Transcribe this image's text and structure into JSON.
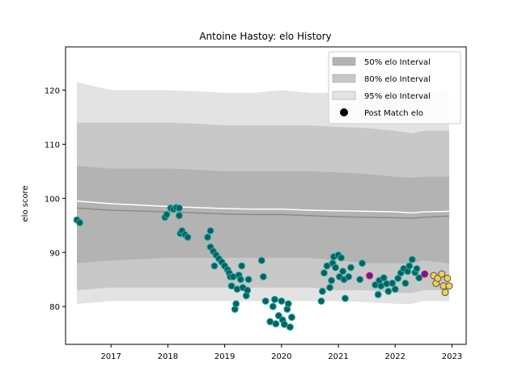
{
  "chart_data": {
    "type": "scatter",
    "title": "Antoine Hastoy: elo History",
    "xlabel": "",
    "ylabel": "elo score",
    "xlim": [
      2016.2,
      2023.25
    ],
    "ylim": [
      73,
      128
    ],
    "x_ticks": [
      2017,
      2018,
      2019,
      2020,
      2021,
      2022,
      2023
    ],
    "y_ticks": [
      80,
      90,
      100,
      110,
      120
    ],
    "grid": false,
    "legend": {
      "placement": "top-right",
      "entries": [
        "50% elo Interval",
        "80% elo Interval",
        "95% elo Interval",
        "Post Match elo"
      ]
    },
    "colors": {
      "band50": "#b3b3b3",
      "band80": "#c8c8c8",
      "band95": "#e3e3e3",
      "median_line": "#8c8c8c",
      "mean_line": "#ffffff",
      "point_fill": "#0f5f5f",
      "point_edge": "#20b2aa",
      "highlight_fill": "#6a1b9a",
      "highlight_edge": "#d81b60",
      "recent_fill": "#f0d050",
      "recent_edge": "#555555"
    },
    "intervals": {
      "x": [
        2016.4,
        2017.0,
        2018.0,
        2018.5,
        2019.0,
        2019.5,
        2020.0,
        2020.5,
        2021.0,
        2021.5,
        2022.0,
        2022.3,
        2022.5,
        2022.95
      ],
      "band95_upper": [
        121.5,
        120.0,
        120.0,
        119.8,
        119.5,
        119.5,
        120.0,
        119.5,
        119.5,
        119.3,
        119.0,
        118.8,
        119.0,
        120.0
      ],
      "band80_upper": [
        114.0,
        114.0,
        114.0,
        113.8,
        113.5,
        113.5,
        113.5,
        113.5,
        113.2,
        113.0,
        112.5,
        112.0,
        112.5,
        112.5
      ],
      "band50_upper": [
        106.0,
        105.5,
        105.5,
        105.3,
        105.0,
        105.0,
        105.0,
        105.0,
        104.8,
        104.5,
        104.0,
        103.8,
        104.0,
        104.0
      ],
      "band50_lower": [
        88.0,
        88.5,
        89.0,
        89.0,
        89.0,
        89.0,
        89.0,
        89.0,
        88.5,
        88.0,
        88.0,
        88.0,
        88.5,
        88.0
      ],
      "band80_lower": [
        83.0,
        83.5,
        83.5,
        83.5,
        83.5,
        83.5,
        83.5,
        83.5,
        83.0,
        83.0,
        82.5,
        82.5,
        83.0,
        83.0
      ],
      "band95_lower": [
        80.5,
        81.0,
        81.0,
        81.0,
        81.0,
        81.0,
        81.0,
        81.0,
        81.0,
        80.8,
        80.5,
        80.5,
        81.0,
        81.0
      ],
      "median": [
        98.2,
        97.8,
        97.5,
        97.3,
        97.1,
        97.0,
        97.0,
        96.8,
        96.6,
        96.5,
        96.4,
        96.3,
        96.5,
        96.7
      ],
      "mean": [
        99.5,
        99.0,
        98.5,
        98.3,
        98.1,
        98.0,
        98.0,
        97.8,
        97.7,
        97.6,
        97.5,
        97.3,
        97.5,
        97.6
      ]
    },
    "points": [
      [
        2016.4,
        96.0
      ],
      [
        2016.45,
        95.5
      ],
      [
        2017.95,
        96.5
      ],
      [
        2017.98,
        97.0
      ],
      [
        2018.05,
        98.2
      ],
      [
        2018.1,
        98.0
      ],
      [
        2018.15,
        98.3
      ],
      [
        2018.2,
        98.2
      ],
      [
        2018.2,
        96.8
      ],
      [
        2018.22,
        93.5
      ],
      [
        2018.25,
        94.0
      ],
      [
        2018.3,
        93.3
      ],
      [
        2018.35,
        92.8
      ],
      [
        2018.7,
        92.8
      ],
      [
        2018.75,
        94.0
      ],
      [
        2018.75,
        91.0
      ],
      [
        2018.8,
        90.2
      ],
      [
        2018.82,
        87.5
      ],
      [
        2018.85,
        89.5
      ],
      [
        2018.9,
        88.8
      ],
      [
        2018.95,
        88.2
      ],
      [
        2019.0,
        87.5
      ],
      [
        2019.05,
        86.8
      ],
      [
        2019.08,
        86.2
      ],
      [
        2019.1,
        85.5
      ],
      [
        2019.12,
        83.8
      ],
      [
        2019.15,
        85.5
      ],
      [
        2019.18,
        79.5
      ],
      [
        2019.2,
        80.5
      ],
      [
        2019.22,
        83.2
      ],
      [
        2019.25,
        85.8
      ],
      [
        2019.28,
        85.0
      ],
      [
        2019.3,
        87.5
      ],
      [
        2019.32,
        83.5
      ],
      [
        2019.38,
        82.0
      ],
      [
        2019.4,
        83.0
      ],
      [
        2019.42,
        85.0
      ],
      [
        2019.65,
        88.5
      ],
      [
        2019.68,
        85.5
      ],
      [
        2019.72,
        81.0
      ],
      [
        2019.8,
        77.2
      ],
      [
        2019.85,
        80.0
      ],
      [
        2019.88,
        81.3
      ],
      [
        2019.9,
        76.8
      ],
      [
        2019.95,
        78.3
      ],
      [
        2020.0,
        81.0
      ],
      [
        2020.02,
        77.5
      ],
      [
        2020.05,
        76.7
      ],
      [
        2020.1,
        79.5
      ],
      [
        2020.12,
        80.5
      ],
      [
        2020.15,
        76.2
      ],
      [
        2020.18,
        78.0
      ],
      [
        2020.7,
        81.0
      ],
      [
        2020.72,
        82.8
      ],
      [
        2020.75,
        86.2
      ],
      [
        2020.8,
        87.5
      ],
      [
        2020.85,
        83.5
      ],
      [
        2020.88,
        84.8
      ],
      [
        2020.9,
        88.0
      ],
      [
        2020.92,
        89.2
      ],
      [
        2020.95,
        87.2
      ],
      [
        2021.0,
        89.5
      ],
      [
        2021.02,
        85.5
      ],
      [
        2021.05,
        89.0
      ],
      [
        2021.08,
        86.5
      ],
      [
        2021.1,
        85.0
      ],
      [
        2021.12,
        81.5
      ],
      [
        2021.18,
        85.5
      ],
      [
        2021.22,
        87.2
      ],
      [
        2021.38,
        85.0
      ],
      [
        2021.42,
        88.0
      ],
      [
        2021.65,
        84.0
      ],
      [
        2021.7,
        82.2
      ],
      [
        2021.72,
        84.8
      ],
      [
        2021.75,
        83.8
      ],
      [
        2021.8,
        85.3
      ],
      [
        2021.85,
        84.2
      ],
      [
        2021.88,
        82.8
      ],
      [
        2021.95,
        84.3
      ],
      [
        2022.0,
        83.2
      ],
      [
        2022.05,
        85.2
      ],
      [
        2022.1,
        86.2
      ],
      [
        2022.15,
        87.0
      ],
      [
        2022.18,
        84.3
      ],
      [
        2022.22,
        86.5
      ],
      [
        2022.25,
        87.5
      ],
      [
        2022.3,
        88.7
      ],
      [
        2022.35,
        86.3
      ],
      [
        2022.38,
        87.0
      ],
      [
        2022.42,
        85.3
      ]
    ],
    "highlight_points": [
      [
        2021.55,
        85.7
      ],
      [
        2022.52,
        86.0
      ]
    ],
    "recent_points": [
      [
        2022.68,
        85.7
      ],
      [
        2022.72,
        84.3
      ],
      [
        2022.75,
        85.2
      ],
      [
        2022.82,
        86.0
      ],
      [
        2022.85,
        83.8
      ],
      [
        2022.88,
        82.6
      ],
      [
        2022.92,
        85.2
      ],
      [
        2022.95,
        83.8
      ]
    ]
  }
}
